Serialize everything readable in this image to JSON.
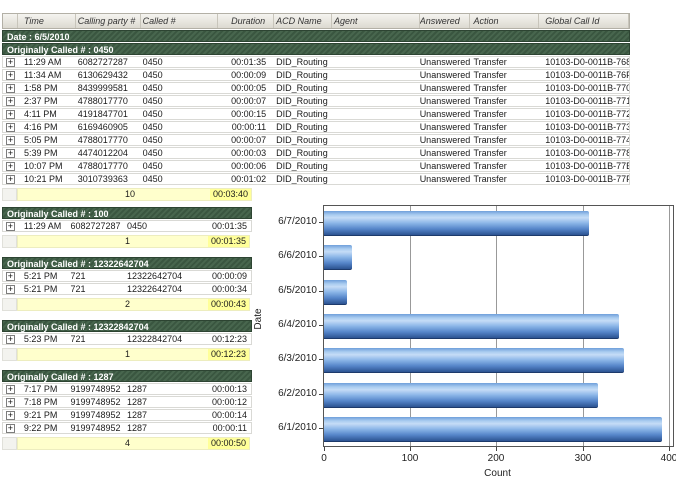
{
  "icons": {
    "expand_plus": "+"
  },
  "table": {
    "columns": [
      "Time",
      "Calling party #",
      "Called #",
      "Duration",
      "ACD Name",
      "Agent",
      "Answered",
      "Action",
      "Global Call Id"
    ],
    "date_label": "Date : 6/5/2010",
    "group": {
      "label": "Originally Called # : 0450",
      "rows": [
        {
          "time": "11:29 AM",
          "calling": "6082727287",
          "called": "0450",
          "duration": "00:01:35",
          "acd": "DID_Routing",
          "agent": "",
          "answered": "Unanswered",
          "action": "Transfer",
          "gcid": "10103-D0-0011B-768"
        },
        {
          "time": "11:34 AM",
          "calling": "6130629432",
          "called": "0450",
          "duration": "00:00:09",
          "acd": "DID_Routing",
          "agent": "",
          "answered": "Unanswered",
          "action": "Transfer",
          "gcid": "10103-D0-0011B-76F"
        },
        {
          "time": "1:58 PM",
          "calling": "8439999581",
          "called": "0450",
          "duration": "00:00:05",
          "acd": "DID_Routing",
          "agent": "",
          "answered": "Unanswered",
          "action": "Transfer",
          "gcid": "10103-D0-0011B-770"
        },
        {
          "time": "2:37 PM",
          "calling": "4788017770",
          "called": "0450",
          "duration": "00:00:07",
          "acd": "DID_Routing",
          "agent": "",
          "answered": "Unanswered",
          "action": "Transfer",
          "gcid": "10103-D0-0011B-771"
        },
        {
          "time": "4:11 PM",
          "calling": "4191847701",
          "called": "0450",
          "duration": "00:00:15",
          "acd": "DID_Routing",
          "agent": "",
          "answered": "Unanswered",
          "action": "Transfer",
          "gcid": "10103-D0-0011B-772"
        },
        {
          "time": "4:16 PM",
          "calling": "6169460905",
          "called": "0450",
          "duration": "00:00:11",
          "acd": "DID_Routing",
          "agent": "",
          "answered": "Unanswered",
          "action": "Transfer",
          "gcid": "10103-D0-0011B-773"
        },
        {
          "time": "5:05 PM",
          "calling": "4788017770",
          "called": "0450",
          "duration": "00:00:07",
          "acd": "DID_Routing",
          "agent": "",
          "answered": "Unanswered",
          "action": "Transfer",
          "gcid": "10103-D0-0011B-774"
        },
        {
          "time": "5:39 PM",
          "calling": "4474012204",
          "called": "0450",
          "duration": "00:00:03",
          "acd": "DID_Routing",
          "agent": "",
          "answered": "Unanswered",
          "action": "Transfer",
          "gcid": "10103-D0-0011B-778"
        },
        {
          "time": "10:07 PM",
          "calling": "4788017770",
          "called": "0450",
          "duration": "00:00:06",
          "acd": "DID_Routing",
          "agent": "",
          "answered": "Unanswered",
          "action": "Transfer",
          "gcid": "10103-D0-0011B-77E"
        },
        {
          "time": "10:21 PM",
          "calling": "3010739363",
          "called": "0450",
          "duration": "00:01:02",
          "acd": "DID_Routing",
          "agent": "",
          "answered": "Unanswered",
          "action": "Transfer",
          "gcid": "10103-D0-0011B-77F"
        }
      ],
      "summary": {
        "count": "10",
        "duration": "00:03:40"
      }
    }
  },
  "left_groups": [
    {
      "label": "Originally Called # : 100",
      "rows": [
        {
          "time": "11:29 AM",
          "calling": "6082727287",
          "called": "0450",
          "duration": "00:01:35"
        }
      ],
      "summary": {
        "count": "1",
        "duration": "00:01:35"
      }
    },
    {
      "label": "Originally Called # : 12322642704",
      "rows": [
        {
          "time": "5:21 PM",
          "calling": "721",
          "called": "12322642704",
          "duration": "00:00:09"
        },
        {
          "time": "5:21 PM",
          "calling": "721",
          "called": "12322642704",
          "duration": "00:00:34"
        }
      ],
      "summary": {
        "count": "2",
        "duration": "00:00:43"
      }
    },
    {
      "label": "Originally Called # : 12322842704",
      "rows": [
        {
          "time": "5:23 PM",
          "calling": "721",
          "called": "12322842704",
          "duration": "00:12:23"
        }
      ],
      "summary": {
        "count": "1",
        "duration": "00:12:23"
      }
    },
    {
      "label": "Originally Called # : 1287",
      "rows": [
        {
          "time": "7:17 PM",
          "calling": "9199748952",
          "called": "1287",
          "duration": "00:00:13"
        },
        {
          "time": "7:18 PM",
          "calling": "9199748952",
          "called": "1287",
          "duration": "00:00:12"
        },
        {
          "time": "9:21 PM",
          "calling": "9199748952",
          "called": "1287",
          "duration": "00:00:14"
        },
        {
          "time": "9:22 PM",
          "calling": "9199748952",
          "called": "1287",
          "duration": "00:00:11"
        }
      ],
      "summary": {
        "count": "4",
        "duration": "00:00:50"
      }
    }
  ],
  "chart_data": {
    "type": "bar",
    "orientation": "horizontal",
    "categories": [
      "6/7/2010",
      "6/6/2010",
      "6/5/2010",
      "6/4/2010",
      "6/3/2010",
      "6/2/2010",
      "6/1/2010"
    ],
    "values": [
      308,
      33,
      27,
      342,
      348,
      318,
      392
    ],
    "title": "",
    "xlabel": "Count",
    "ylabel": "Date",
    "xlim": [
      0,
      405
    ],
    "xticks": [
      0,
      100,
      200,
      300,
      400
    ],
    "grid": "vertical",
    "bar_color": "#5b8fd4"
  }
}
